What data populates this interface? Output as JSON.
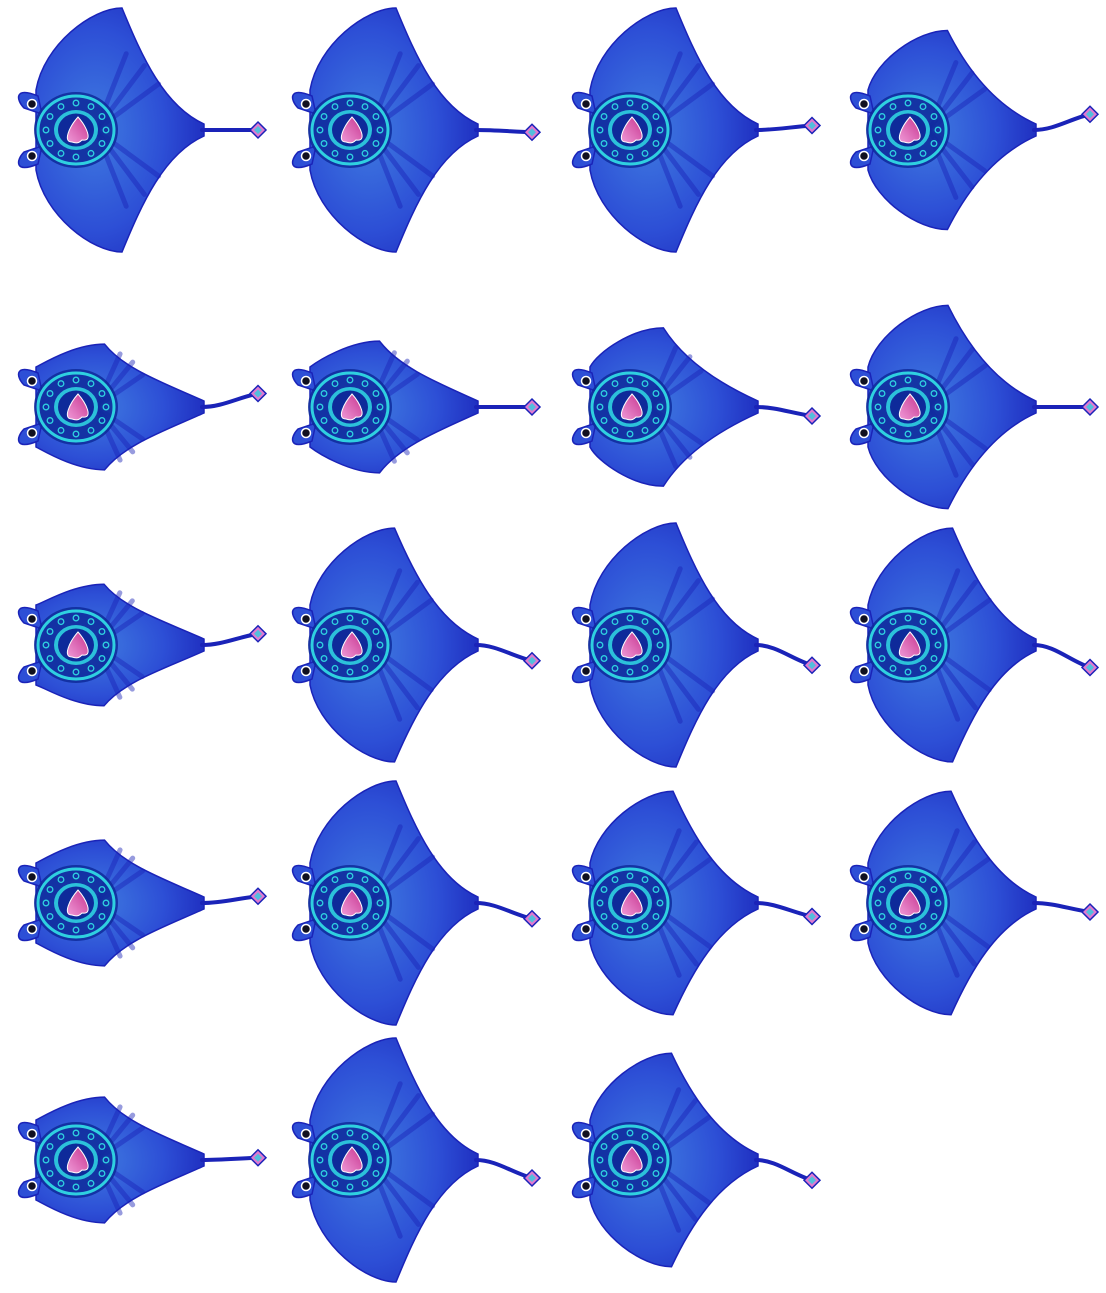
{
  "sprite_sheet": {
    "colors": {
      "body_dark": "#1a23b8",
      "body_mid": "#2d4fd6",
      "body_light": "#3f7be0",
      "ring": "#2fd0e0",
      "ring_dark": "#0e2a9a",
      "heart": "#c7348f",
      "heart_light": "#f09ad8",
      "tail_tip": "#e07ad0",
      "eye": "#101020"
    },
    "frames": [
      {
        "row": 0,
        "col": 0,
        "wing": 1.0,
        "tail_bend": 0.0
      },
      {
        "row": 0,
        "col": 1,
        "wing": 1.0,
        "tail_bend": 0.05
      },
      {
        "row": 0,
        "col": 2,
        "wing": 1.0,
        "tail_bend": -0.1
      },
      {
        "row": 0,
        "col": 3,
        "wing": 0.78,
        "tail_bend": -0.35
      },
      {
        "row": 1,
        "col": 0,
        "wing": 0.42,
        "tail_bend": -0.3
      },
      {
        "row": 1,
        "col": 1,
        "wing": 0.45,
        "tail_bend": 0.0
      },
      {
        "row": 1,
        "col": 2,
        "wing": 0.58,
        "tail_bend": 0.2
      },
      {
        "row": 1,
        "col": 3,
        "wing": 0.8,
        "tail_bend": 0.0
      },
      {
        "row": 2,
        "col": 0,
        "wing": 0.4,
        "tail_bend": -0.25
      },
      {
        "row": 2,
        "col": 1,
        "wing": 0.95,
        "tail_bend": 0.35
      },
      {
        "row": 2,
        "col": 2,
        "wing": 1.0,
        "tail_bend": 0.45
      },
      {
        "row": 2,
        "col": 3,
        "wing": 0.95,
        "tail_bend": 0.5
      },
      {
        "row": 3,
        "col": 0,
        "wing": 0.42,
        "tail_bend": -0.15
      },
      {
        "row": 3,
        "col": 1,
        "wing": 1.0,
        "tail_bend": 0.35
      },
      {
        "row": 3,
        "col": 2,
        "wing": 0.9,
        "tail_bend": 0.3
      },
      {
        "row": 3,
        "col": 3,
        "wing": 0.9,
        "tail_bend": 0.2
      },
      {
        "row": 4,
        "col": 0,
        "wing": 0.42,
        "tail_bend": -0.05
      },
      {
        "row": 4,
        "col": 1,
        "wing": 1.0,
        "tail_bend": 0.4
      },
      {
        "row": 4,
        "col": 2,
        "wing": 0.85,
        "tail_bend": 0.45
      }
    ]
  }
}
